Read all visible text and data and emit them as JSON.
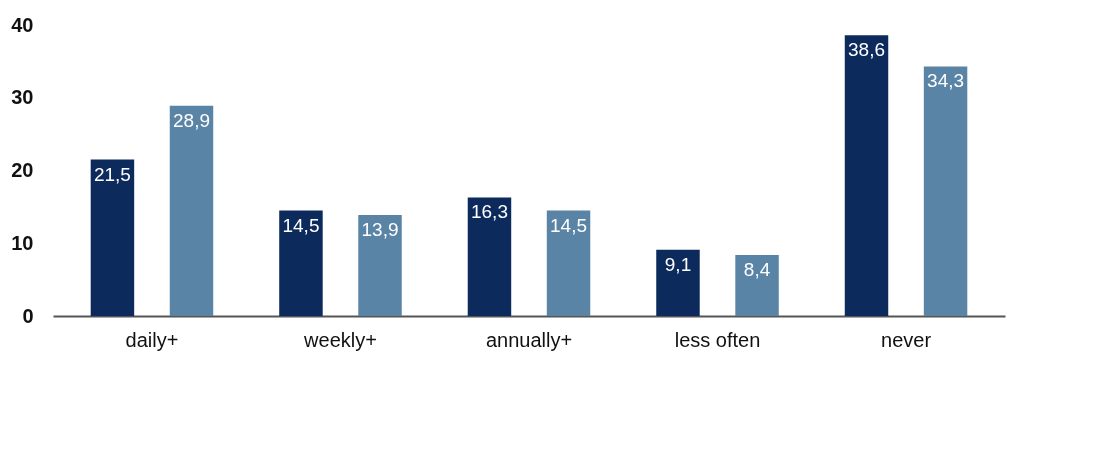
{
  "chart_data": {
    "type": "bar",
    "categories": [
      "daily+",
      "weekly+",
      "annually+",
      "less often",
      "never"
    ],
    "series": [
      {
        "color": "#0c2a5b",
        "values": [
          21.5,
          14.5,
          16.3,
          9.1,
          38.6
        ],
        "value_labels": [
          "21,5",
          "14,5",
          "16,3",
          "9,1",
          "38,6"
        ]
      },
      {
        "color": "#5a84a6",
        "values": [
          28.9,
          13.9,
          14.5,
          8.4,
          34.3
        ],
        "value_labels": [
          "28,9",
          "13,9",
          "14,5",
          "8,4",
          "34,3"
        ]
      }
    ],
    "ylim": [
      0,
      40
    ],
    "yticks": [
      0,
      10,
      20,
      30,
      40
    ],
    "grid": false
  }
}
